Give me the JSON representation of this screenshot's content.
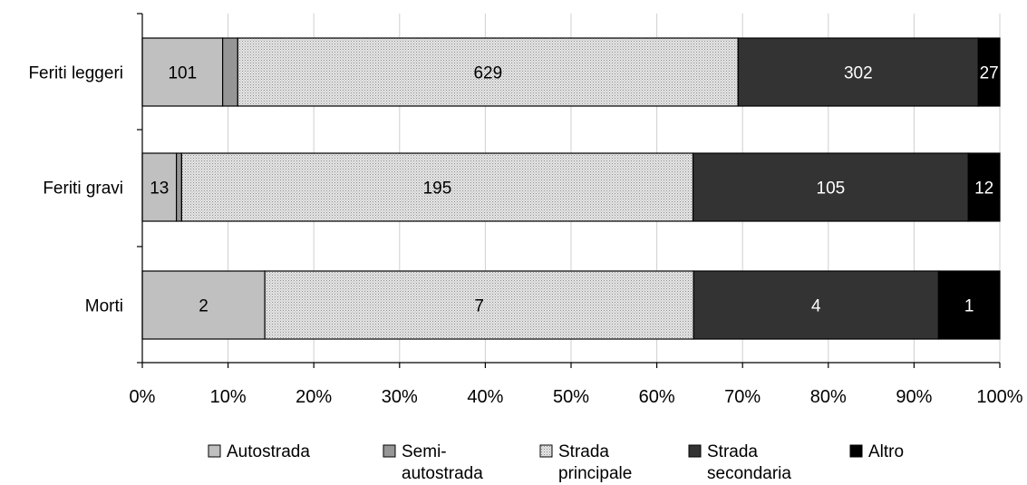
{
  "chart_data": {
    "type": "bar",
    "orientation": "horizontal",
    "stacked": "percent",
    "categories": [
      "Feriti leggeri",
      "Feriti gravi",
      "Morti"
    ],
    "series": [
      {
        "name": "Autostrada",
        "values": [
          101,
          13,
          2
        ],
        "color": "#c0c0c0",
        "pattern": "none",
        "label_color": "#000000"
      },
      {
        "name": "Semi-autostrada",
        "values": [
          19,
          2,
          0
        ],
        "color": "#969696",
        "pattern": "none",
        "label_color": "#000000"
      },
      {
        "name": "Strada principale",
        "values": [
          629,
          195,
          7
        ],
        "color": "#d9d9d9",
        "pattern": "dots",
        "label_color": "#000000"
      },
      {
        "name": "Strada secondaria",
        "values": [
          302,
          105,
          4
        ],
        "color": "#333333",
        "pattern": "none",
        "label_color": "#ffffff"
      },
      {
        "name": "Altro",
        "values": [
          27,
          12,
          1
        ],
        "color": "#000000",
        "pattern": "none",
        "label_color": "#ffffff"
      }
    ],
    "legend_lines": [
      [
        "Autostrada"
      ],
      [
        "Semi-",
        "autostrada"
      ],
      [
        "Strada",
        "principale"
      ],
      [
        "Strada",
        "secondaria"
      ],
      [
        "Altro"
      ]
    ],
    "xlim": [
      0,
      100
    ],
    "xticks": [
      "0%",
      "10%",
      "20%",
      "30%",
      "40%",
      "50%",
      "60%",
      "70%",
      "80%",
      "90%",
      "100%"
    ],
    "grid": true,
    "legend_position": "bottom"
  }
}
